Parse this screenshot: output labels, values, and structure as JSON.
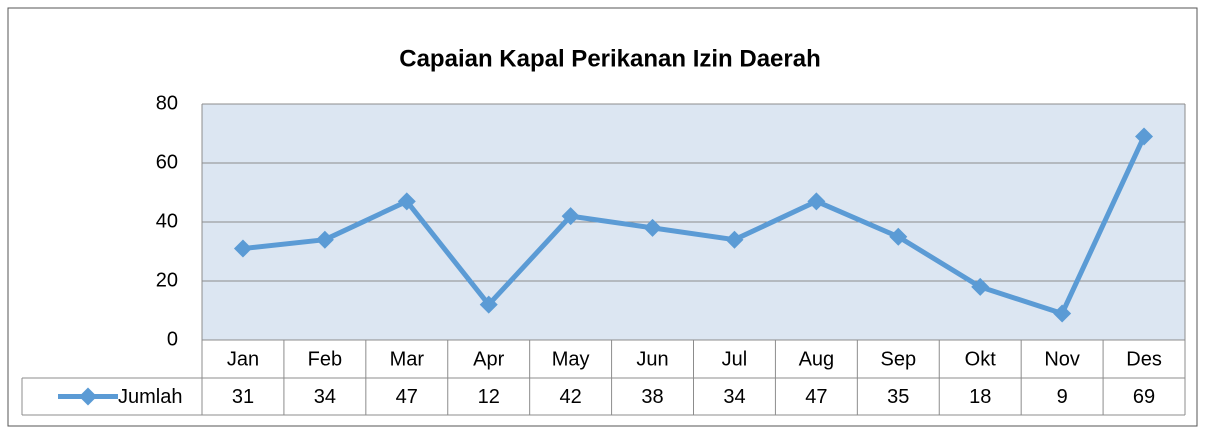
{
  "chart_data": {
    "type": "line",
    "title": "Capaian Kapal Perikanan Izin Daerah",
    "categories": [
      "Jan",
      "Feb",
      "Mar",
      "Apr",
      "May",
      "Jun",
      "Jul",
      "Aug",
      "Sep",
      "Okt",
      "Nov",
      "Des"
    ],
    "series": [
      {
        "name": "Jumlah",
        "color": "#5b9bd5",
        "values": [
          31,
          34,
          47,
          12,
          42,
          38,
          34,
          47,
          35,
          18,
          9,
          69
        ]
      }
    ],
    "ylim": [
      0,
      80
    ],
    "yticks": [
      0,
      20,
      40,
      60,
      80
    ],
    "grid": true
  }
}
